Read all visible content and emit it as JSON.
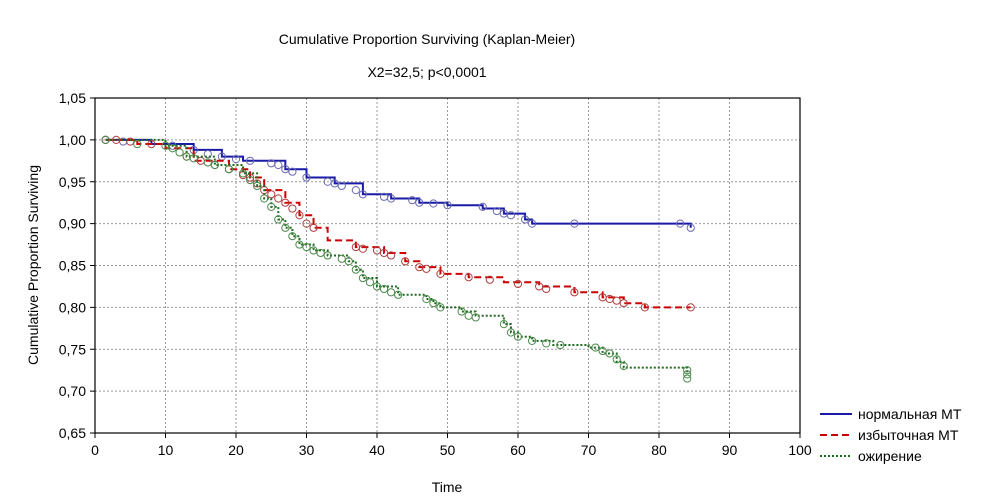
{
  "chart_data": {
    "type": "line",
    "title": "Cumulative Proportion Surviving (Kaplan-Meier)",
    "subtitle": "X2=32,5; p<0,0001",
    "xlabel": "Time",
    "ylabel": "Cumulative Proportion Surviving",
    "xlim": [
      0,
      100
    ],
    "ylim": [
      0.65,
      1.05
    ],
    "x_ticks": [
      "0",
      "10",
      "20",
      "30",
      "40",
      "50",
      "60",
      "70",
      "80",
      "90",
      "100"
    ],
    "y_ticks": [
      "0,65",
      "0,70",
      "0,75",
      "0,80",
      "0,85",
      "0,90",
      "0,95",
      "1,00",
      "1,05"
    ],
    "grid": true,
    "legend_position": "bottom-right, outside plot",
    "series": [
      {
        "name": "нормальная МТ",
        "color": "#1a1aa8",
        "dash": "solid",
        "marker_color": "#6a6ab0",
        "points": [
          [
            1.5,
            1.0
          ],
          [
            8,
            0.995
          ],
          [
            14,
            0.988
          ],
          [
            18,
            0.98
          ],
          [
            21,
            0.975
          ],
          [
            27,
            0.965
          ],
          [
            30,
            0.955
          ],
          [
            34,
            0.948
          ],
          [
            38,
            0.935
          ],
          [
            42,
            0.93
          ],
          [
            46,
            0.925
          ],
          [
            50,
            0.922
          ],
          [
            55,
            0.918
          ],
          [
            58,
            0.912
          ],
          [
            61,
            0.905
          ],
          [
            62,
            0.9
          ],
          [
            84.5,
            0.895
          ]
        ],
        "markers": [
          [
            1.5,
            1.0
          ],
          [
            4,
            0.998
          ],
          [
            11,
            0.993
          ],
          [
            14,
            0.988
          ],
          [
            16,
            0.983
          ],
          [
            18,
            0.98
          ],
          [
            20,
            0.977
          ],
          [
            22,
            0.975
          ],
          [
            25,
            0.972
          ],
          [
            26,
            0.97
          ],
          [
            27,
            0.965
          ],
          [
            28,
            0.962
          ],
          [
            30,
            0.955
          ],
          [
            33,
            0.95
          ],
          [
            34,
            0.948
          ],
          [
            35,
            0.945
          ],
          [
            37,
            0.94
          ],
          [
            38,
            0.935
          ],
          [
            41,
            0.932
          ],
          [
            42,
            0.93
          ],
          [
            45,
            0.928
          ],
          [
            46,
            0.925
          ],
          [
            48,
            0.924
          ],
          [
            50,
            0.922
          ],
          [
            55,
            0.92
          ],
          [
            57,
            0.915
          ],
          [
            58,
            0.912
          ],
          [
            59,
            0.91
          ],
          [
            61,
            0.905
          ],
          [
            62,
            0.9
          ],
          [
            68,
            0.9
          ],
          [
            83,
            0.9
          ],
          [
            84.5,
            0.895
          ]
        ]
      },
      {
        "name": "избыточная МТ",
        "color": "#cc0000",
        "dash": "dashed",
        "marker_color": "#b04040",
        "points": [
          [
            1.5,
            1.0
          ],
          [
            6,
            0.995
          ],
          [
            10,
            0.99
          ],
          [
            14,
            0.975
          ],
          [
            19,
            0.965
          ],
          [
            22,
            0.955
          ],
          [
            24,
            0.94
          ],
          [
            27,
            0.925
          ],
          [
            29,
            0.91
          ],
          [
            31,
            0.895
          ],
          [
            33,
            0.88
          ],
          [
            37,
            0.872
          ],
          [
            41,
            0.865
          ],
          [
            44,
            0.855
          ],
          [
            46,
            0.848
          ],
          [
            49,
            0.84
          ],
          [
            53,
            0.836
          ],
          [
            58,
            0.83
          ],
          [
            63,
            0.825
          ],
          [
            68,
            0.818
          ],
          [
            72,
            0.812
          ],
          [
            75,
            0.805
          ],
          [
            78,
            0.8
          ],
          [
            84.5,
            0.8
          ]
        ],
        "markers": [
          [
            1.5,
            1.0
          ],
          [
            3,
            1.0
          ],
          [
            5,
            0.998
          ],
          [
            8,
            0.995
          ],
          [
            13,
            0.98
          ],
          [
            15,
            0.975
          ],
          [
            17,
            0.97
          ],
          [
            19,
            0.965
          ],
          [
            21,
            0.958
          ],
          [
            22,
            0.955
          ],
          [
            23,
            0.948
          ],
          [
            24,
            0.94
          ],
          [
            25,
            0.935
          ],
          [
            26,
            0.93
          ],
          [
            27,
            0.925
          ],
          [
            28,
            0.918
          ],
          [
            29,
            0.91
          ],
          [
            30,
            0.9
          ],
          [
            31,
            0.895
          ],
          [
            37,
            0.872
          ],
          [
            38,
            0.87
          ],
          [
            40,
            0.868
          ],
          [
            41,
            0.865
          ],
          [
            42,
            0.862
          ],
          [
            44,
            0.855
          ],
          [
            46,
            0.848
          ],
          [
            47,
            0.846
          ],
          [
            49,
            0.84
          ],
          [
            53,
            0.836
          ],
          [
            56,
            0.833
          ],
          [
            60,
            0.828
          ],
          [
            63,
            0.825
          ],
          [
            64,
            0.822
          ],
          [
            68,
            0.818
          ],
          [
            72,
            0.812
          ],
          [
            73,
            0.81
          ],
          [
            74,
            0.808
          ],
          [
            75,
            0.805
          ],
          [
            78,
            0.8
          ],
          [
            84.5,
            0.8
          ]
        ]
      },
      {
        "name": "ожирение",
        "color": "#1f6b1f",
        "dash": "dotted",
        "marker_color": "#4a8a4a",
        "points": [
          [
            1.5,
            1.0
          ],
          [
            10,
            0.993
          ],
          [
            13,
            0.98
          ],
          [
            17,
            0.97
          ],
          [
            21,
            0.96
          ],
          [
            23,
            0.945
          ],
          [
            24,
            0.93
          ],
          [
            25,
            0.92
          ],
          [
            26,
            0.905
          ],
          [
            27,
            0.895
          ],
          [
            28,
            0.885
          ],
          [
            29,
            0.875
          ],
          [
            31,
            0.868
          ],
          [
            33,
            0.862
          ],
          [
            36,
            0.855
          ],
          [
            37,
            0.845
          ],
          [
            38,
            0.835
          ],
          [
            40,
            0.825
          ],
          [
            43,
            0.815
          ],
          [
            47,
            0.81
          ],
          [
            48,
            0.805
          ],
          [
            49,
            0.8
          ],
          [
            52,
            0.795
          ],
          [
            54,
            0.79
          ],
          [
            58,
            0.78
          ],
          [
            59,
            0.77
          ],
          [
            60,
            0.765
          ],
          [
            62,
            0.76
          ],
          [
            65,
            0.755
          ],
          [
            70,
            0.752
          ],
          [
            72,
            0.745
          ],
          [
            74,
            0.735
          ],
          [
            75,
            0.728
          ],
          [
            84,
            0.72
          ]
        ],
        "markers": [
          [
            1.5,
            1.0
          ],
          [
            6,
            0.995
          ],
          [
            10,
            0.993
          ],
          [
            11,
            0.99
          ],
          [
            12,
            0.985
          ],
          [
            13,
            0.98
          ],
          [
            14,
            0.978
          ],
          [
            16,
            0.973
          ],
          [
            17,
            0.97
          ],
          [
            19,
            0.965
          ],
          [
            21,
            0.96
          ],
          [
            22,
            0.952
          ],
          [
            23,
            0.945
          ],
          [
            24,
            0.93
          ],
          [
            25,
            0.92
          ],
          [
            26,
            0.905
          ],
          [
            27,
            0.895
          ],
          [
            28,
            0.885
          ],
          [
            29,
            0.875
          ],
          [
            30,
            0.872
          ],
          [
            31,
            0.868
          ],
          [
            32,
            0.865
          ],
          [
            33,
            0.862
          ],
          [
            35,
            0.858
          ],
          [
            36,
            0.855
          ],
          [
            37,
            0.845
          ],
          [
            38,
            0.835
          ],
          [
            39,
            0.83
          ],
          [
            40,
            0.825
          ],
          [
            41,
            0.822
          ],
          [
            42,
            0.818
          ],
          [
            43,
            0.815
          ],
          [
            47,
            0.81
          ],
          [
            48,
            0.805
          ],
          [
            49,
            0.8
          ],
          [
            52,
            0.795
          ],
          [
            53,
            0.79
          ],
          [
            54,
            0.788
          ],
          [
            58,
            0.78
          ],
          [
            59,
            0.77
          ],
          [
            60,
            0.765
          ],
          [
            62,
            0.76
          ],
          [
            64,
            0.757
          ],
          [
            66,
            0.755
          ],
          [
            71,
            0.752
          ],
          [
            72,
            0.748
          ],
          [
            73,
            0.745
          ],
          [
            74,
            0.738
          ],
          [
            75,
            0.73
          ],
          [
            84,
            0.72
          ],
          [
            84,
            0.725
          ],
          [
            84,
            0.715
          ]
        ]
      }
    ]
  }
}
